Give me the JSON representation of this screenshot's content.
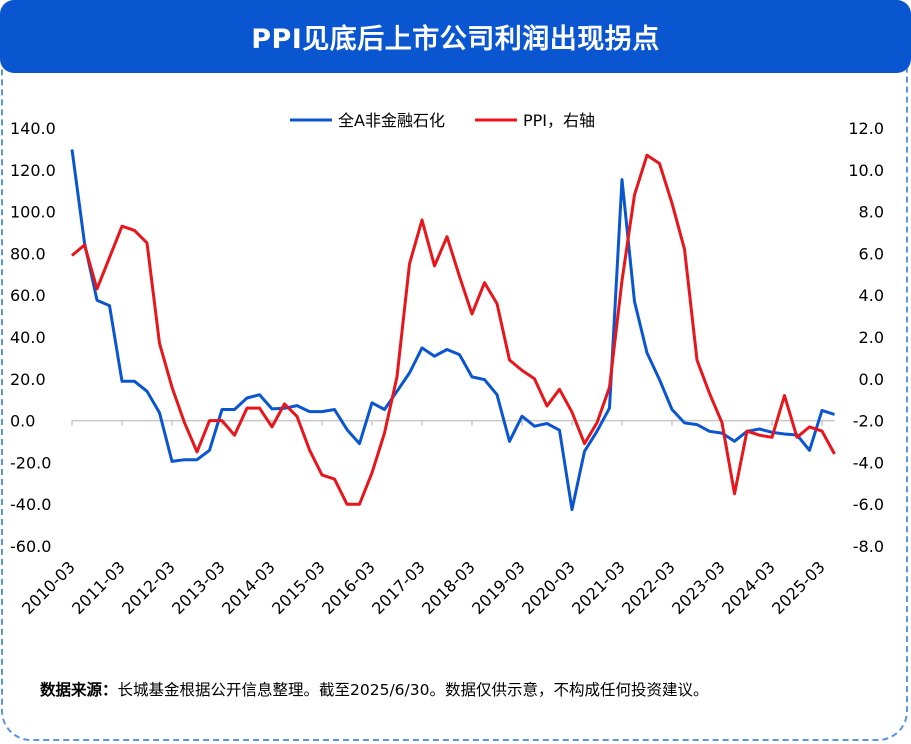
{
  "title": "PPI见底后上市公司利润出现拐点",
  "footer": {
    "source_label": "数据来源：",
    "source_text": "长城基金根据公开信息整理。截至2025/6/30。数据仅供示意，不构成任何投资建议。"
  },
  "chart_data": {
    "type": "line",
    "legend_position": "top-center",
    "grid": false,
    "x": [
      "2010-03",
      "2010-06",
      "2010-09",
      "2010-12",
      "2011-03",
      "2011-06",
      "2011-09",
      "2011-12",
      "2012-03",
      "2012-06",
      "2012-09",
      "2012-12",
      "2013-03",
      "2013-06",
      "2013-09",
      "2013-12",
      "2014-03",
      "2014-06",
      "2014-09",
      "2014-12",
      "2015-03",
      "2015-06",
      "2015-09",
      "2015-12",
      "2016-03",
      "2016-06",
      "2016-09",
      "2016-12",
      "2017-03",
      "2017-06",
      "2017-09",
      "2017-12",
      "2018-03",
      "2018-06",
      "2018-09",
      "2018-12",
      "2019-03",
      "2019-06",
      "2019-09",
      "2019-12",
      "2020-03",
      "2020-06",
      "2020-09",
      "2020-12",
      "2021-03",
      "2021-06",
      "2021-09",
      "2021-12",
      "2022-03",
      "2022-06",
      "2022-09",
      "2022-12",
      "2023-03",
      "2023-06",
      "2023-09",
      "2023-12",
      "2024-03",
      "2024-06",
      "2024-09",
      "2024-12",
      "2025-03",
      "2025-06"
    ],
    "x_tick_labels": [
      "2010-03",
      "2011-03",
      "2012-03",
      "2013-03",
      "2014-03",
      "2015-03",
      "2016-03",
      "2017-03",
      "2018-03",
      "2019-03",
      "2020-03",
      "2021-03",
      "2022-03",
      "2023-03",
      "2024-03",
      "2025-03"
    ],
    "y_left": {
      "range": [
        -60,
        140
      ],
      "ticks": [
        "140.0",
        "120.0",
        "100.0",
        "80.0",
        "60.0",
        "40.0",
        "20.0",
        "0.0",
        "-20.0",
        "-40.0",
        "-60.0"
      ]
    },
    "y_right": {
      "range": [
        -8,
        12
      ],
      "ticks": [
        "12.0",
        "10.0",
        "8.0",
        "6.0",
        "4.0",
        "2.0",
        "0.0",
        "-2.0",
        "-4.0",
        "-6.0",
        "-8.0"
      ]
    },
    "series": [
      {
        "name": "全A非金融石化",
        "axis": "left",
        "color": "#0a56d1",
        "values": [
          129.7,
          85,
          57.6,
          55,
          18.8,
          18.8,
          14,
          3.8,
          -19.5,
          -18.7,
          -18.7,
          -14.2,
          5.3,
          5.3,
          10.8,
          12.4,
          5.6,
          5.9,
          7.2,
          4.3,
          4.3,
          5.3,
          -4.3,
          -11,
          8.5,
          5.3,
          14,
          22.8,
          34.8,
          30.8,
          34,
          31.6,
          20.9,
          19.6,
          12.4,
          -9.9,
          2.1,
          -2.7,
          -1.4,
          -4.6,
          -42.6,
          -14.7,
          -5.1,
          6,
          115.3,
          57,
          32.4,
          19.6,
          5.3,
          -1.1,
          -1.9,
          -5.1,
          -6,
          -9.9,
          -5.1,
          -4,
          -5.6,
          -6.4,
          -6.9,
          -14.2,
          4.9,
          2.9
        ]
      },
      {
        "name": "PPI，右轴",
        "axis": "right",
        "color": "#e8161b",
        "values": [
          5.9,
          6.4,
          4.3,
          5.8,
          7.3,
          7.1,
          6.5,
          1.7,
          -0.4,
          -2.1,
          -3.5,
          -2.0,
          -2.0,
          -2.7,
          -1.4,
          -1.4,
          -2.3,
          -1.2,
          -1.8,
          -3.4,
          -4.6,
          -4.8,
          -6.0,
          -6.0,
          -4.5,
          -2.6,
          0.1,
          5.5,
          7.6,
          5.4,
          6.8,
          4.9,
          3.1,
          4.6,
          3.6,
          0.9,
          0.4,
          0.0,
          -1.3,
          -0.5,
          -1.6,
          -3.1,
          -2.1,
          -0.4,
          4.7,
          8.8,
          10.7,
          10.3,
          8.4,
          6.2,
          0.9,
          -0.7,
          -2.1,
          -5.5,
          -2.5,
          -2.7,
          -2.8,
          -0.8,
          -2.8,
          -2.3,
          -2.5,
          -3.6
        ]
      }
    ]
  }
}
